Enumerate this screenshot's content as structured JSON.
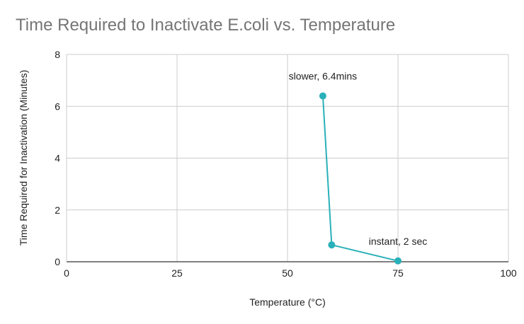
{
  "chart_data": {
    "type": "line",
    "title": "Time Required to Inactivate E.coli vs. Temperature",
    "xlabel": "Temperature (°C)",
    "ylabel": "Time Required for Inactivation (Minutes)",
    "xlim": [
      0,
      100
    ],
    "ylim": [
      0,
      8
    ],
    "x_ticks": [
      0,
      25,
      50,
      75,
      100
    ],
    "y_ticks": [
      0,
      2,
      4,
      6,
      8
    ],
    "grid": true,
    "legend": "none",
    "series": [
      {
        "color": "#2ab0b9",
        "points": [
          {
            "x": 58,
            "y": 6.4
          },
          {
            "x": 60,
            "y": 0.65
          },
          {
            "x": 75,
            "y": 0.033
          }
        ]
      }
    ],
    "annotations": [
      {
        "text": "slower, 6.4mins",
        "x": 58,
        "y": 6.4
      },
      {
        "text": "instant, 2 sec",
        "x": 75,
        "y": 0.033
      }
    ]
  }
}
